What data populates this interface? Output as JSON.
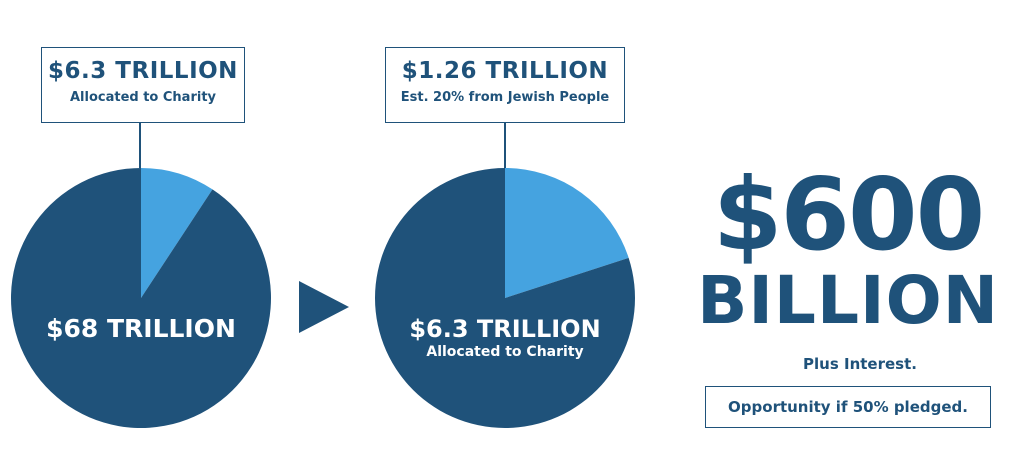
{
  "colors": {
    "dark": "#1f527a",
    "light": "#45a3e0",
    "white": "#ffffff"
  },
  "chart_data": [
    {
      "type": "pie",
      "total_label": "$68 TRILLION",
      "slices": [
        {
          "label": "$6.3 TRILLION",
          "sublabel": "Allocated to Charity",
          "value": 6.3,
          "color": "#45a3e0"
        },
        {
          "label": "$68 TRILLION",
          "value": 61.7,
          "color": "#1f527a"
        }
      ]
    },
    {
      "type": "pie",
      "total_label": "$6.3 TRILLION",
      "total_sublabel": "Allocated to Charity",
      "slices": [
        {
          "label": "$1.26 TRILLION",
          "sublabel": "Est. 20% from Jewish People",
          "value": 1.26,
          "color": "#45a3e0"
        },
        {
          "label": "$6.3 TRILLION",
          "value": 5.04,
          "color": "#1f527a"
        }
      ]
    }
  ],
  "callout1": {
    "amount": "$6.3 TRILLION",
    "desc": "Allocated to Charity"
  },
  "callout2": {
    "amount": "$1.26 TRILLION",
    "desc": "Est. 20% from Jewish People"
  },
  "pie1": {
    "label": "$68 TRILLION"
  },
  "pie2": {
    "label": "$6.3 TRILLION",
    "sublabel": "Allocated to Charity"
  },
  "result": {
    "amount": "$600",
    "unit": "BILLION",
    "note": "Plus Interest.",
    "opportunity": "Opportunity if 50% pledged."
  }
}
